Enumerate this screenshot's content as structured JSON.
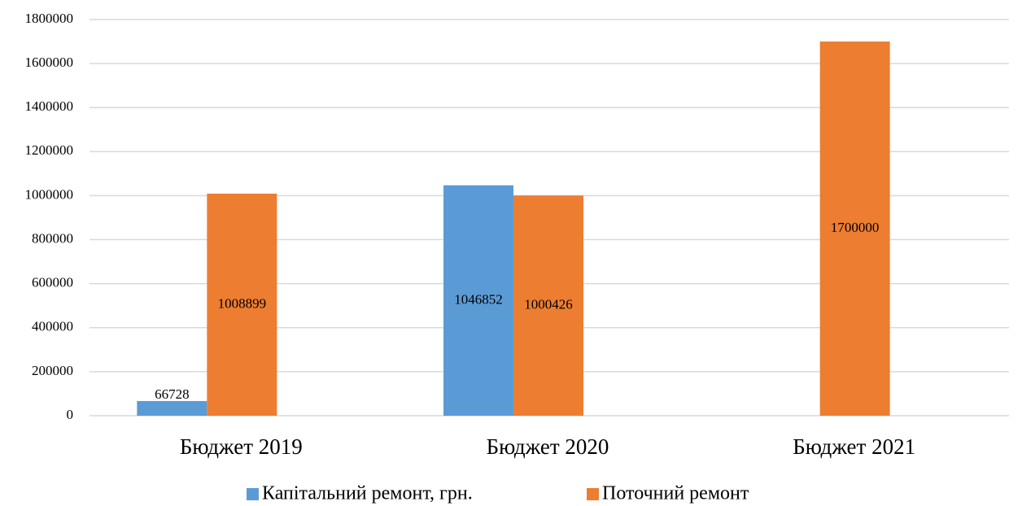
{
  "chart_data": {
    "type": "bar",
    "categories": [
      "Бюджет 2019",
      "Бюджет 2020",
      "Бюджет 2021"
    ],
    "series": [
      {
        "name": "Капітальний ремонт, грн.",
        "color": "#5b9bd5",
        "values": [
          66728,
          1046852,
          null
        ]
      },
      {
        "name": "Поточний ремонт",
        "color": "#ed7d31",
        "values": [
          1008899,
          1000426,
          1700000
        ]
      }
    ],
    "ylim": [
      0,
      1800000
    ],
    "yticks": [
      0,
      200000,
      400000,
      600000,
      800000,
      1000000,
      1200000,
      1400000,
      1600000,
      1800000
    ],
    "grid": true,
    "legend": "bottom"
  }
}
